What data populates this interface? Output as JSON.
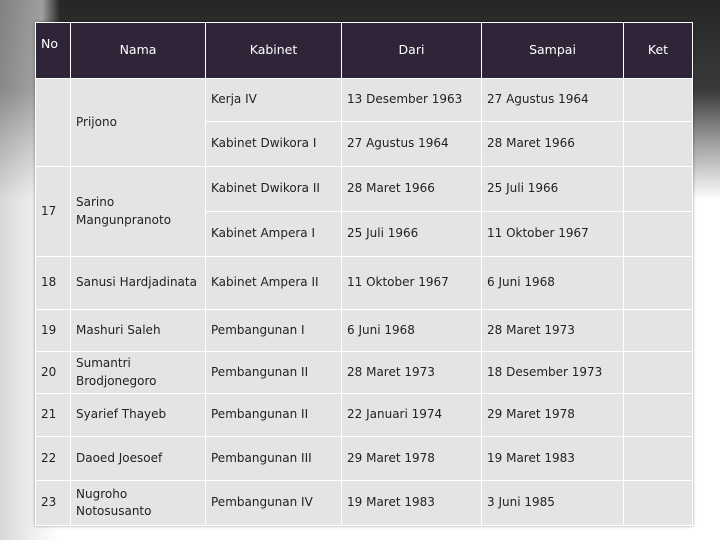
{
  "table": {
    "header": [
      "No",
      "Nama",
      "Kabinet",
      "Dari",
      "Sampai",
      "Ket"
    ],
    "groups": [
      {
        "nama": "Prijono",
        "terms": [
          {
            "kabinet": "Kerja IV",
            "dari": "13 Desember 1963",
            "sampai": "27 Agustus 1964"
          },
          {
            "kabinet": "Kabinet Dwikora I",
            "dari": "27 Agustus 1964",
            "sampai": "28 Maret 1966"
          }
        ]
      },
      {
        "no": "17",
        "nama": "Sarino Mangunpranoto",
        "terms": [
          {
            "kabinet": "Kabinet Dwikora II",
            "dari": "28 Maret 1966",
            "sampai": "25 Juli 1966"
          },
          {
            "kabinet": "Kabinet Ampera I",
            "dari": "25 Juli 1966",
            "sampai": "11 Oktober 1967"
          }
        ]
      },
      {
        "no": "18",
        "nama": "Sanusi Hardjadinata",
        "terms": [
          {
            "kabinet": "Kabinet Ampera II",
            "dari": "11 Oktober 1967",
            "sampai": "6 Juni 1968"
          }
        ]
      },
      {
        "no": "19",
        "nama": "Mashuri Saleh",
        "terms": [
          {
            "kabinet": "Pembangunan I",
            "dari": "6 Juni 1968",
            "sampai": "28 Maret 1973"
          }
        ]
      },
      {
        "no": "20",
        "nama": "Sumantri Brodjonegoro",
        "terms": [
          {
            "kabinet": "Pembangunan II",
            "dari": "28 Maret 1973",
            "sampai": "18 Desember 1973"
          }
        ]
      },
      {
        "no": "21",
        "nama": "Syarief Thayeb",
        "terms": [
          {
            "kabinet": "Pembangunan II",
            "dari": "22 Januari 1974",
            "sampai": "29 Maret 1978"
          }
        ]
      },
      {
        "no": "22",
        "nama": "Daoed Joesoef",
        "terms": [
          {
            "kabinet": "Pembangunan III",
            "dari": "29 Maret 1978",
            "sampai": "19 Maret 1983"
          }
        ]
      },
      {
        "no": "23",
        "nama": "Nugroho Notosusanto",
        "terms": [
          {
            "kabinet": "Pembangunan IV",
            "dari": "19 Maret 1983",
            "sampai": "3 Juni 1985"
          }
        ]
      }
    ]
  }
}
